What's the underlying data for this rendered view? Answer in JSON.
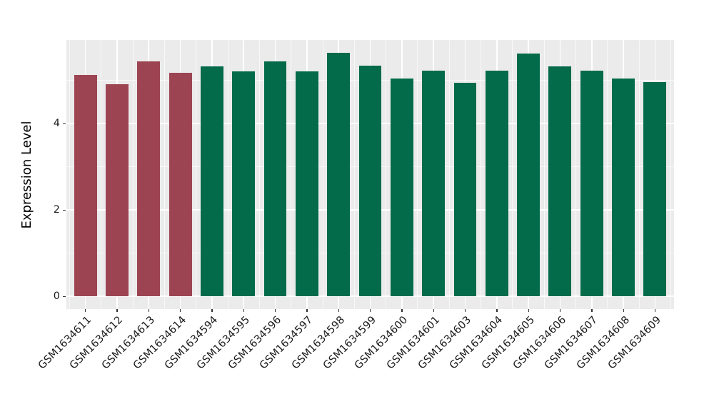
{
  "chart_data": {
    "type": "bar",
    "title": "",
    "xlabel": "",
    "ylabel": "Expression Level",
    "ytick_labels": [
      "0",
      "2",
      "4"
    ],
    "ytick_values": [
      0,
      2,
      4
    ],
    "yminor_values": [
      1,
      3,
      5
    ],
    "ylim": [
      -0.3,
      5.93
    ],
    "grid": "on",
    "legend_position": "none",
    "panel_bg_color": "#EBEBEB",
    "grid_color": "#FFFFFF",
    "group_colors": {
      "group1": "#9C4452",
      "group2": "#046B4A"
    },
    "categories": [
      "GSM1634611",
      "GSM1634612",
      "GSM1634613",
      "GSM1634614",
      "GSM1634594",
      "GSM1634595",
      "GSM1634596",
      "GSM1634597",
      "GSM1634598",
      "GSM1634599",
      "GSM1634600",
      "GSM1634601",
      "GSM1634603",
      "GSM1634604",
      "GSM1634605",
      "GSM1634606",
      "GSM1634607",
      "GSM1634608",
      "GSM1634609"
    ],
    "values": [
      5.12,
      4.91,
      5.44,
      5.17,
      5.32,
      5.21,
      5.44,
      5.21,
      5.64,
      5.34,
      5.04,
      5.22,
      4.94,
      5.22,
      5.62,
      5.32,
      5.22,
      5.04,
      4.96
    ],
    "groups": [
      "group1",
      "group1",
      "group1",
      "group1",
      "group2",
      "group2",
      "group2",
      "group2",
      "group2",
      "group2",
      "group2",
      "group2",
      "group2",
      "group2",
      "group2",
      "group2",
      "group2",
      "group2",
      "group2"
    ]
  }
}
